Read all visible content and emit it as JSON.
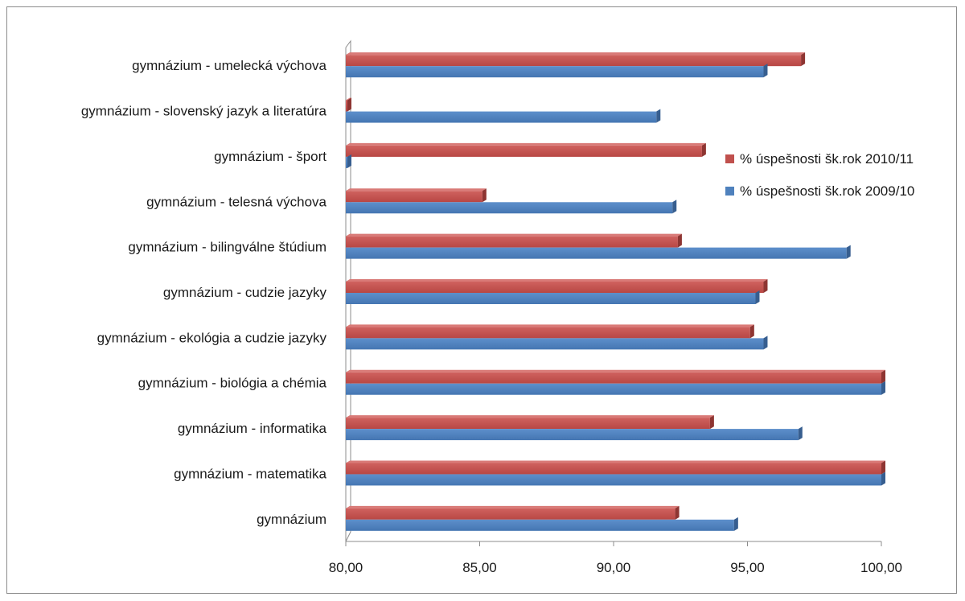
{
  "chart_data": {
    "type": "bar",
    "orientation": "horizontal",
    "categories": [
      "gymnázium - umelecká výchova",
      "gymnázium - slovenský jazyk a literatúra",
      "gymnázium - šport",
      "gymnázium - telesná výchova",
      "gymnázium - bilingválne štúdium",
      "gymnázium - cudzie jazyky",
      "gymnázium - ekológia a cudzie jazyky",
      "gymnázium - biológia a chémia",
      "gymnázium - informatika",
      "gymnázium - matematika",
      "gymnázium"
    ],
    "series": [
      {
        "name": "% úspešnosti šk.rok 2010/11",
        "color": "#c0504d",
        "values": [
          97.0,
          80.0,
          93.3,
          85.1,
          92.4,
          95.6,
          95.1,
          100.0,
          93.6,
          100.0,
          92.3
        ]
      },
      {
        "name": "% úspešnosti šk.rok 2009/10",
        "color": "#4f81bd",
        "values": [
          95.6,
          91.6,
          80.0,
          92.2,
          98.7,
          95.3,
          95.6,
          100.0,
          96.9,
          100.0,
          94.5
        ]
      }
    ],
    "xlim": [
      80,
      100
    ],
    "x_ticks": [
      "80,00",
      "85,00",
      "90,00",
      "95,00",
      "100,00"
    ],
    "x_tick_values": [
      80,
      85,
      90,
      95,
      100
    ],
    "legend": "right",
    "grid": false
  }
}
